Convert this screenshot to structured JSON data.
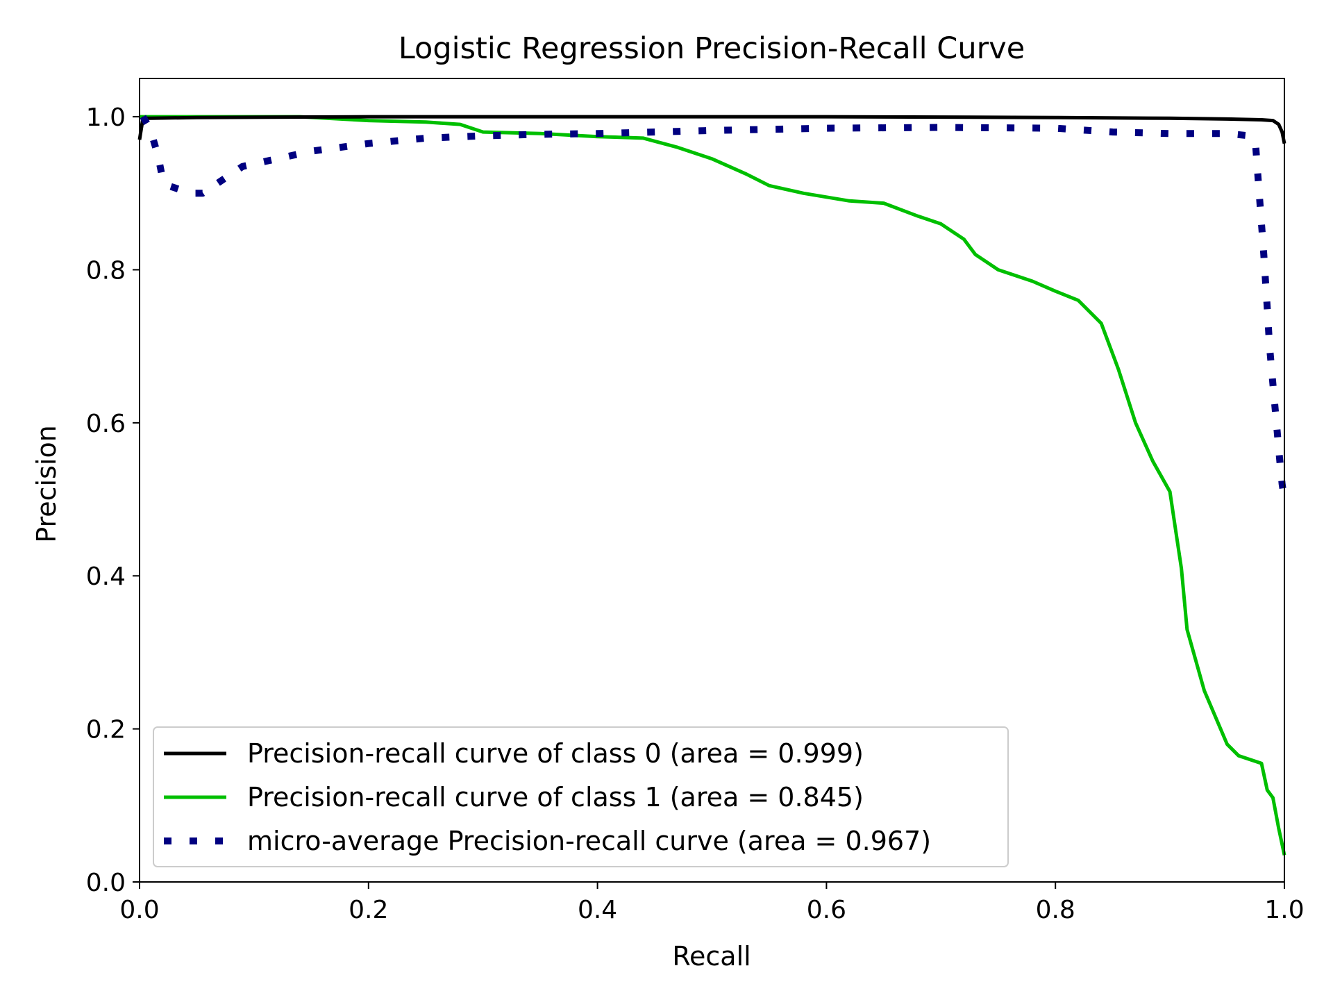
{
  "chart_data": {
    "type": "line",
    "title": "Logistic Regression Precision-Recall Curve",
    "xlabel": "Recall",
    "ylabel": "Precision",
    "xlim": [
      0.0,
      1.0
    ],
    "ylim": [
      0.0,
      1.05
    ],
    "xticks": [
      "0.0",
      "0.2",
      "0.4",
      "0.6",
      "0.8",
      "1.0"
    ],
    "yticks": [
      "0.0",
      "0.2",
      "0.4",
      "0.6",
      "0.8",
      "1.0"
    ],
    "grid": false,
    "legend_position": "lower-left",
    "series": [
      {
        "name": "Precision-recall curve of class 0 (area = 0.999)",
        "color": "#000000",
        "style": "solid",
        "x": [
          0.0,
          0.003,
          0.01,
          0.05,
          0.2,
          0.4,
          0.6,
          0.8,
          0.9,
          0.95,
          0.98,
          0.99,
          0.995,
          0.998,
          1.0
        ],
        "y": [
          0.97,
          0.998,
          0.998,
          0.999,
          1.0,
          1.0,
          1.0,
          0.999,
          0.998,
          0.997,
          0.996,
          0.995,
          0.99,
          0.98,
          0.965
        ]
      },
      {
        "name": "Precision-recall curve of class 1 (area = 0.845)",
        "color": "#00bf00",
        "style": "solid",
        "x": [
          0.0,
          0.003,
          0.05,
          0.1,
          0.14,
          0.2,
          0.25,
          0.28,
          0.3,
          0.35,
          0.4,
          0.44,
          0.47,
          0.5,
          0.53,
          0.55,
          0.58,
          0.62,
          0.65,
          0.68,
          0.7,
          0.72,
          0.73,
          0.75,
          0.78,
          0.8,
          0.82,
          0.84,
          0.855,
          0.87,
          0.885,
          0.9,
          0.905,
          0.91,
          0.915,
          0.93,
          0.95,
          0.96,
          0.97,
          0.98,
          0.985,
          0.99,
          0.995,
          1.0
        ],
        "y": [
          1.0,
          1.0,
          1.0,
          1.0,
          1.0,
          0.995,
          0.993,
          0.99,
          0.98,
          0.978,
          0.974,
          0.972,
          0.96,
          0.945,
          0.925,
          0.91,
          0.9,
          0.89,
          0.887,
          0.87,
          0.86,
          0.84,
          0.82,
          0.8,
          0.785,
          0.772,
          0.76,
          0.73,
          0.67,
          0.6,
          0.55,
          0.51,
          0.46,
          0.41,
          0.33,
          0.25,
          0.18,
          0.165,
          0.16,
          0.155,
          0.12,
          0.11,
          0.07,
          0.035
        ]
      },
      {
        "name": "micro-average Precision-recall curve (area = 0.967)",
        "color": "#000080",
        "style": "dotted",
        "x": [
          0.003,
          0.007,
          0.012,
          0.016,
          0.02,
          0.025,
          0.035,
          0.045,
          0.055,
          0.07,
          0.09,
          0.12,
          0.15,
          0.2,
          0.25,
          0.3,
          0.35,
          0.4,
          0.5,
          0.6,
          0.7,
          0.8,
          0.85,
          0.9,
          0.95,
          0.97,
          0.975,
          0.978,
          0.982,
          0.985,
          0.987,
          0.99,
          0.993,
          0.996,
          0.998,
          1.0
        ],
        "y": [
          1.0,
          0.99,
          0.97,
          0.95,
          0.92,
          0.91,
          0.905,
          0.9,
          0.9,
          0.915,
          0.935,
          0.945,
          0.955,
          0.965,
          0.972,
          0.975,
          0.977,
          0.978,
          0.982,
          0.985,
          0.986,
          0.985,
          0.98,
          0.978,
          0.978,
          0.975,
          0.96,
          0.9,
          0.82,
          0.75,
          0.7,
          0.65,
          0.6,
          0.55,
          0.52,
          0.5
        ]
      }
    ]
  }
}
